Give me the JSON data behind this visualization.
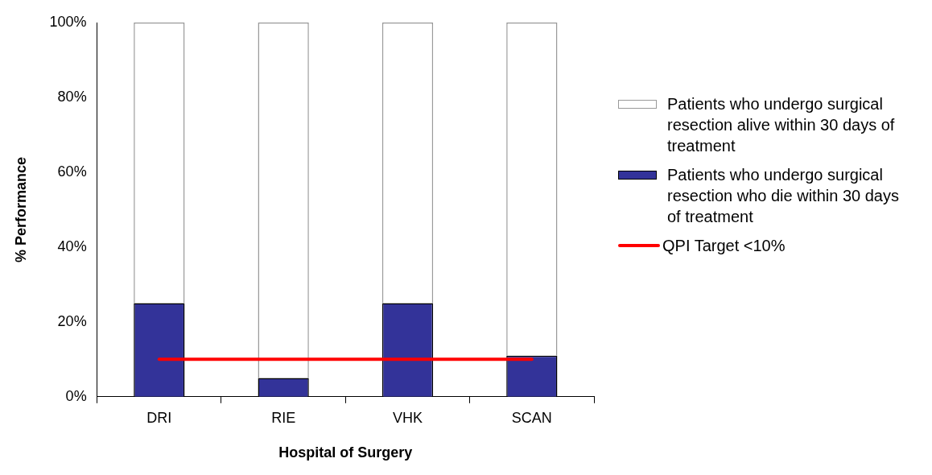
{
  "chart_data": {
    "type": "bar",
    "stacked": true,
    "xlabel": "Hospital of Surgery",
    "ylabel": "% Performance",
    "categories": [
      "DRI",
      "RIE",
      "VHK",
      "SCAN"
    ],
    "series": [
      {
        "name": "Patients who undergo surgical resection who die within 30 days of treatment",
        "color": "#333399",
        "values": [
          25,
          5,
          25,
          11
        ]
      },
      {
        "name": "Patients who undergo surgical resection alive within 30 days of treatment",
        "color": "#ffffff",
        "values": [
          75,
          95,
          75,
          89
        ]
      },
      {
        "type": "line",
        "name": "QPI Target <10%",
        "color": "#ff0000",
        "values": [
          10,
          10,
          10,
          10
        ]
      }
    ],
    "ylim": [
      0,
      100
    ],
    "yticks": [
      {
        "value": 0,
        "label": "0%"
      },
      {
        "value": 20,
        "label": "20%"
      },
      {
        "value": 40,
        "label": "40%"
      },
      {
        "value": 60,
        "label": "60%"
      },
      {
        "value": 80,
        "label": "80%"
      },
      {
        "value": 100,
        "label": "100%"
      }
    ],
    "grid": false,
    "legend": "right",
    "marker": "none"
  }
}
